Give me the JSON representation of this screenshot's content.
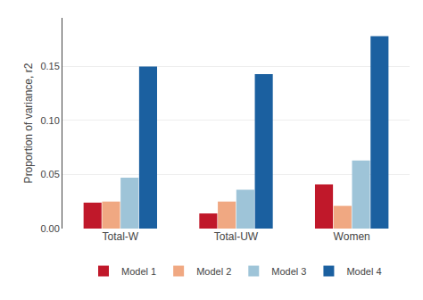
{
  "chart_data": {
    "type": "bar",
    "categories": [
      "Total-W",
      "Total-UW",
      "Women"
    ],
    "series": [
      {
        "name": "Model 1",
        "color": "#c0182a",
        "values": [
          0.024,
          0.014,
          0.041
        ]
      },
      {
        "name": "Model 2",
        "color": "#f0a882",
        "values": [
          0.025,
          0.025,
          0.021
        ]
      },
      {
        "name": "Model 3",
        "color": "#9ec4d8",
        "values": [
          0.047,
          0.036,
          0.063
        ]
      },
      {
        "name": "Model 4",
        "color": "#1b60a0",
        "values": [
          0.15,
          0.143,
          0.178
        ]
      }
    ],
    "ylabel": "Proportion of variance, r2",
    "ylim": [
      0,
      0.195
    ],
    "yticks": [
      {
        "value": 0,
        "label": "0.00"
      },
      0.05,
      {
        "value": 0.1,
        "label": "0.10"
      },
      0.15
    ],
    "grid": true,
    "legend": "bottom"
  }
}
